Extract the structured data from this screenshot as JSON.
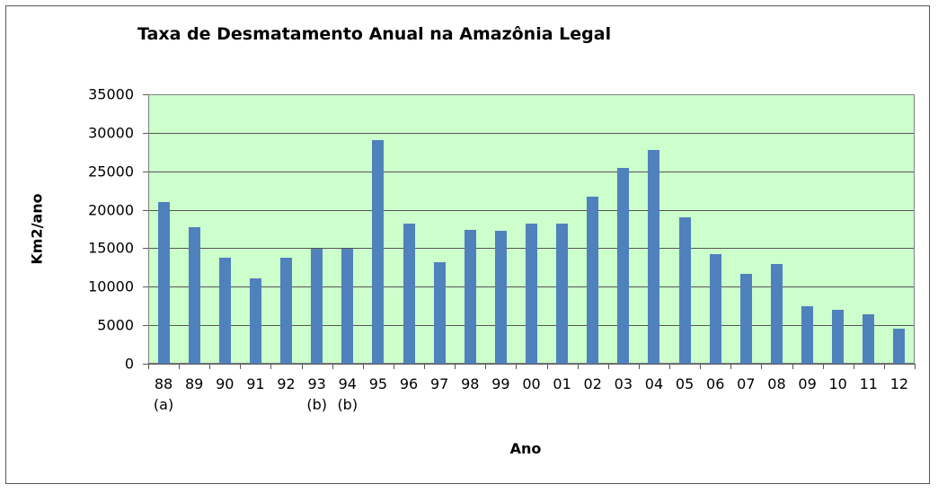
{
  "chart_data": {
    "type": "bar",
    "title": "Taxa de Desmatamento Anual na Amazônia Legal",
    "xlabel": "Ano",
    "ylabel": "Km2/ano",
    "ylim": [
      0,
      35000
    ],
    "yticks": [
      0,
      5000,
      10000,
      15000,
      20000,
      25000,
      30000,
      35000
    ],
    "grid": true,
    "legend": null,
    "categories": [
      "88",
      "89",
      "90",
      "91",
      "92",
      "93",
      "94",
      "95",
      "96",
      "97",
      "98",
      "99",
      "00",
      "01",
      "02",
      "03",
      "04",
      "05",
      "06",
      "07",
      "08",
      "09",
      "10",
      "11",
      "12"
    ],
    "category_notes": [
      "(a)",
      "",
      "",
      "",
      "",
      "(b)",
      "(b)",
      "",
      "",
      "",
      "",
      "",
      "",
      "",
      "",
      "",
      "",
      "",
      "",
      "",
      "",
      "",
      "",
      "",
      ""
    ],
    "values": [
      21050,
      17770,
      13730,
      11030,
      13786,
      14896,
      14896,
      29059,
      18161,
      13227,
      17383,
      17259,
      18226,
      18165,
      21651,
      25396,
      27772,
      19014,
      14286,
      11651,
      12911,
      7464,
      7000,
      6418,
      4571
    ],
    "colors": {
      "bar": "#4f81bd",
      "plot_background": "#ccffcc",
      "gridline": "#555555"
    }
  }
}
